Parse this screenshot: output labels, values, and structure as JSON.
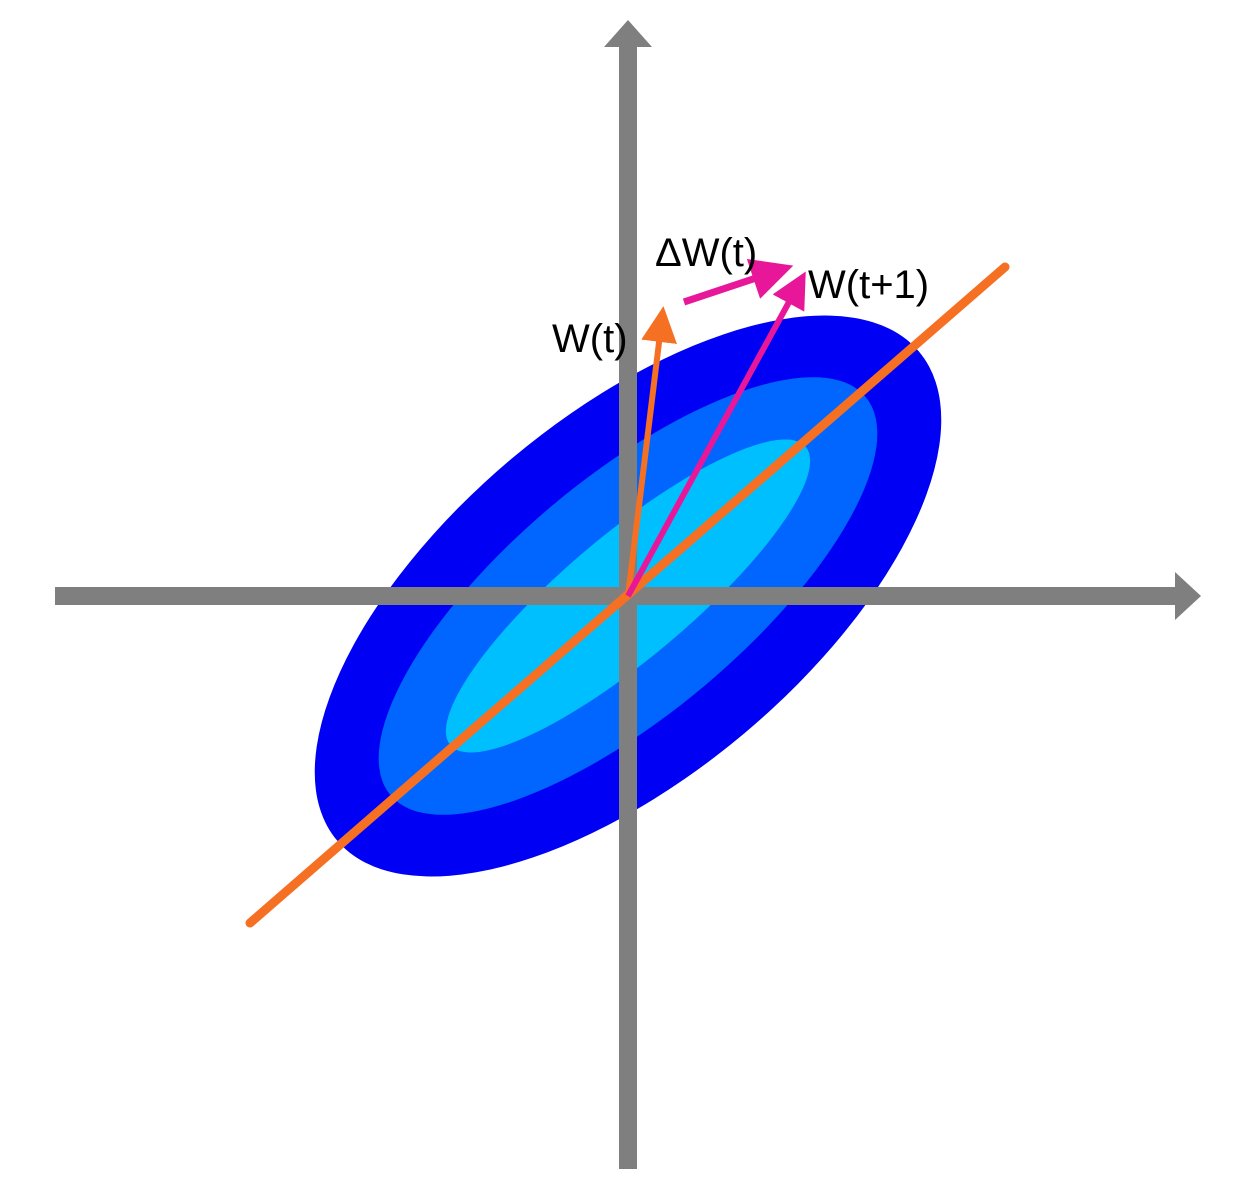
{
  "colors": {
    "background": "#ffffff",
    "axis": "#7f7f7f",
    "ellipse_outer": "#0000f5",
    "ellipse_middle": "#0066ff",
    "ellipse_inner": "#00bfff",
    "principal_line": "#f57023",
    "weight_vector_t": "#f57023",
    "delta_vector": "#e8179a",
    "weight_vector_t1": "#e8179a"
  },
  "labels": {
    "w_t": "W(t)",
    "delta_w": "ΔW(t)",
    "w_t1": "W(t+1)"
  },
  "icons": {
    "x_axis_arrowhead": "arrow-right",
    "y_axis_arrowhead": "arrow-up"
  }
}
